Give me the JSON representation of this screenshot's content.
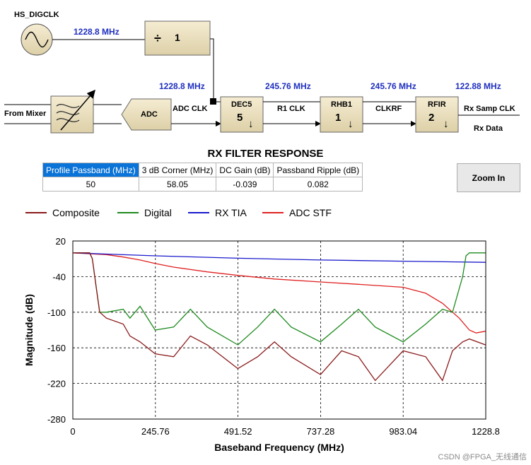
{
  "diagram": {
    "clock_label": "HS_DIGCLK",
    "input_label": "From Mixer",
    "adc_label": "ADC",
    "freq_labels": [
      "1228.8 MHz",
      "1228.8 MHz",
      "245.76 MHz",
      "245.76 MHz",
      "122.88 MHz"
    ],
    "divider": {
      "symbol": "÷",
      "value": "1"
    },
    "blocks": [
      {
        "name": "DEC5",
        "factor": "5"
      },
      {
        "name": "RHB1",
        "factor": "1"
      },
      {
        "name": "RFIR",
        "factor": "2"
      }
    ],
    "clock_names": [
      "ADC CLK",
      "R1 CLK",
      "CLKRF",
      "Rx Samp CLK"
    ],
    "output_label": "Rx Data",
    "down_arrow": "↓"
  },
  "section_title": "RX FILTER RESPONSE",
  "table": {
    "headers": [
      "Profile Passband (MHz)",
      "3 dB Corner (MHz)",
      "DC Gain (dB)",
      "Passband Ripple (dB)"
    ],
    "values": [
      "50",
      "58.05",
      "-0.039",
      "0.082"
    ]
  },
  "zoom_button": "Zoom In",
  "watermark": "CSDN @FPGA_无线通信",
  "chart_data": {
    "type": "line",
    "xlabel": "Baseband Frequency (MHz)",
    "ylabel": "Magnitude (dB)",
    "xlim": [
      0,
      1228.8
    ],
    "ylim": [
      -280,
      20
    ],
    "xticks": [
      "0",
      "245.76",
      "491.52",
      "737.28",
      "983.04",
      "1228.8"
    ],
    "yticks": [
      "20",
      "-40",
      "-100",
      "-160",
      "-220",
      "-280"
    ],
    "grid": true,
    "legend_position": "top",
    "series": [
      {
        "name": "Composite",
        "color": "#8b1a1a",
        "x": [
          0,
          50,
          58,
          70,
          80,
          100,
          150,
          170,
          200,
          245,
          300,
          350,
          400,
          491,
          550,
          600,
          650,
          737,
          800,
          850,
          900,
          983,
          1050,
          1100,
          1130,
          1160,
          1180,
          1228
        ],
        "y": [
          0,
          0,
          -10,
          -60,
          -100,
          -110,
          -120,
          -140,
          -150,
          -170,
          -175,
          -140,
          -155,
          -195,
          -175,
          -150,
          -175,
          -205,
          -165,
          -175,
          -215,
          -165,
          -175,
          -215,
          -165,
          -150,
          -145,
          -155
        ]
      },
      {
        "name": "Digital",
        "color": "#1e8a1e",
        "x": [
          0,
          50,
          58,
          70,
          80,
          100,
          150,
          170,
          200,
          245,
          300,
          350,
          400,
          491,
          550,
          600,
          650,
          737,
          800,
          850,
          900,
          983,
          1050,
          1100,
          1130,
          1160,
          1170,
          1180,
          1228
        ],
        "y": [
          0,
          0,
          -10,
          -60,
          -100,
          -100,
          -95,
          -110,
          -90,
          -130,
          -125,
          -95,
          -125,
          -155,
          -125,
          -95,
          -125,
          -150,
          -120,
          -95,
          -125,
          -150,
          -120,
          -95,
          -100,
          -40,
          -5,
          0,
          0
        ]
      },
      {
        "name": "RX TIA",
        "color": "#1a1acc",
        "x": [
          0,
          100,
          245,
          491,
          737,
          983,
          1228
        ],
        "y": [
          0,
          -2,
          -5,
          -9,
          -12,
          -14,
          -16
        ]
      },
      {
        "name": "ADC STF",
        "color": "#e02020",
        "x": [
          0,
          100,
          150,
          200,
          245,
          300,
          400,
          491,
          600,
          737,
          850,
          983,
          1050,
          1100,
          1150,
          1180,
          1200,
          1228
        ],
        "y": [
          0,
          -3,
          -7,
          -12,
          -18,
          -24,
          -32,
          -38,
          -44,
          -49,
          -53,
          -58,
          -68,
          -85,
          -110,
          -130,
          -135,
          -132
        ]
      }
    ]
  }
}
